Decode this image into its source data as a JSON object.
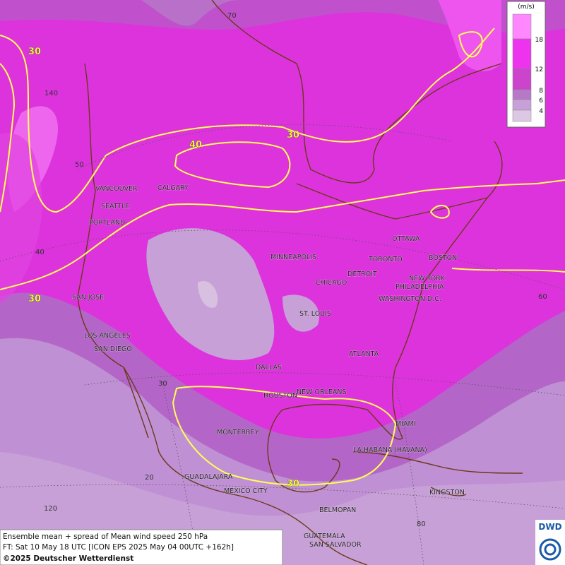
{
  "legend": {
    "unit": "(m/s)",
    "ticks": [
      18,
      12,
      8,
      6,
      4
    ],
    "colors": [
      "#ff88ff",
      "#ee33ee",
      "#cc44cc",
      "#b878c8",
      "#c8a0d8",
      "#dcc8e4"
    ]
  },
  "cities": [
    "VANCOUVER",
    "CALGARY",
    "SEATTLE",
    "PORTLAND",
    "OTTAWA",
    "MINNEAPOLIS",
    "TORONTO",
    "BOSTON",
    "DETROIT",
    "NEW YORK",
    "PHILADELPHIA",
    "CHICAGO",
    "SAN JOSE",
    "WASHINGTON D.C.",
    "ST. LOUIS",
    "LOS ANGELES",
    "SAN DIEGO",
    "ATLANTA",
    "DALLAS",
    "HOUSTON",
    "NEW ORLEANS",
    "MIAMI",
    "MONTERREY",
    "LA HABANA (HAVANA)",
    "GUADALAJARA",
    "MEXICO CITY",
    "KINGSTON",
    "BELMOPAN",
    "GUATEMALA",
    "SAN SALVADOR"
  ],
  "grid_labels": [
    70,
    140,
    50,
    40,
    30,
    20,
    120,
    80,
    60
  ],
  "contour_labels": [
    30,
    40,
    30,
    30,
    30
  ],
  "footer": {
    "line1": "Ensemble mean + spread of Mean wind speed 250 hPa",
    "line2": "FT: Sat 10 May 18 UTC [ICON EPS 2025 May 04 00UTC +162h]",
    "line3": "©2025 Deutscher Wetterdienst"
  },
  "logo": "DWD"
}
